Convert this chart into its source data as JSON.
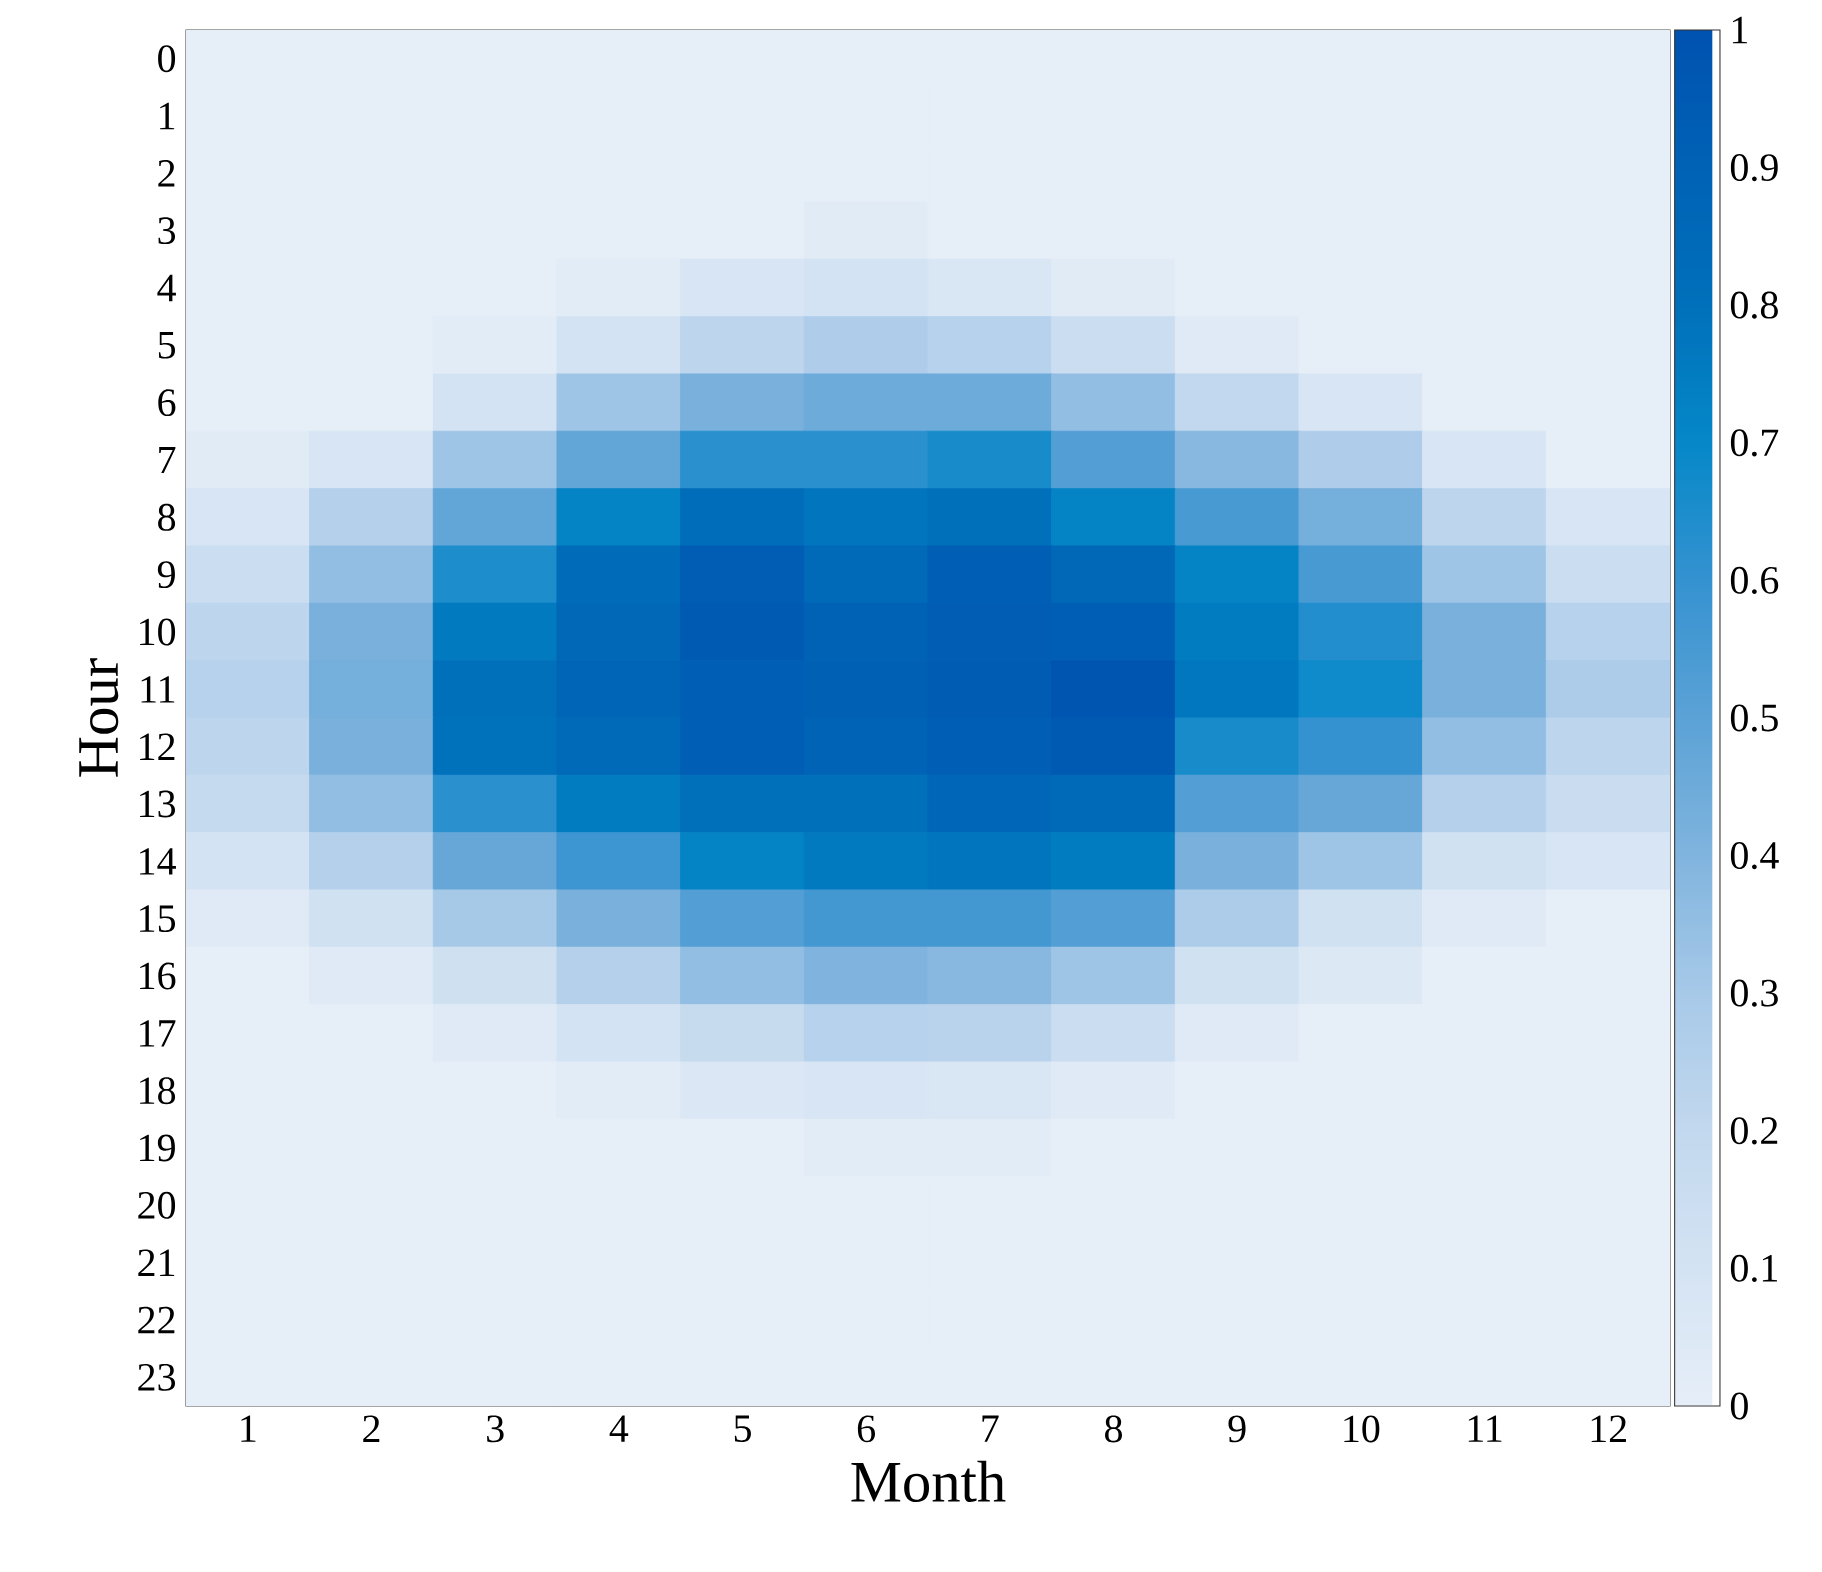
{
  "chart_data": {
    "type": "heatmap",
    "xlabel": "Month",
    "ylabel": "Hour",
    "categories": [
      "1",
      "2",
      "3",
      "4",
      "5",
      "6",
      "7",
      "8",
      "9",
      "10",
      "11",
      "12"
    ],
    "y_categories": [
      "0",
      "1",
      "2",
      "3",
      "4",
      "5",
      "6",
      "7",
      "8",
      "9",
      "10",
      "11",
      "12",
      "13",
      "14",
      "15",
      "16",
      "17",
      "18",
      "19",
      "20",
      "21",
      "22",
      "23"
    ],
    "cells": [
      [
        0,
        0,
        0,
        0,
        0,
        0,
        0,
        0,
        0,
        0,
        0,
        0
      ],
      [
        0,
        0,
        0,
        0,
        0,
        0,
        0,
        0,
        0,
        0,
        0,
        0
      ],
      [
        0,
        0,
        0,
        0,
        0,
        0,
        0,
        0,
        0,
        0,
        0,
        0
      ],
      [
        0,
        0,
        0,
        0,
        0,
        0.03,
        0,
        0,
        0,
        0,
        0,
        0
      ],
      [
        0,
        0,
        0,
        0.02,
        0.08,
        0.1,
        0.07,
        0.03,
        0,
        0,
        0,
        0
      ],
      [
        0,
        0,
        0.02,
        0.1,
        0.22,
        0.27,
        0.24,
        0.15,
        0.04,
        0,
        0,
        0
      ],
      [
        0,
        0,
        0.1,
        0.32,
        0.42,
        0.45,
        0.45,
        0.35,
        0.2,
        0.08,
        0,
        0
      ],
      [
        0.03,
        0.08,
        0.32,
        0.48,
        0.62,
        0.62,
        0.66,
        0.52,
        0.38,
        0.27,
        0.08,
        0
      ],
      [
        0.08,
        0.25,
        0.48,
        0.72,
        0.82,
        0.78,
        0.8,
        0.72,
        0.55,
        0.43,
        0.22,
        0.08
      ],
      [
        0.15,
        0.35,
        0.65,
        0.83,
        0.93,
        0.85,
        0.92,
        0.86,
        0.72,
        0.55,
        0.32,
        0.15
      ],
      [
        0.22,
        0.42,
        0.76,
        0.86,
        0.95,
        0.9,
        0.93,
        0.92,
        0.75,
        0.64,
        0.42,
        0.24
      ],
      [
        0.24,
        0.43,
        0.8,
        0.88,
        0.92,
        0.91,
        0.94,
        0.98,
        0.77,
        0.68,
        0.42,
        0.28
      ],
      [
        0.22,
        0.42,
        0.79,
        0.84,
        0.92,
        0.89,
        0.92,
        0.95,
        0.66,
        0.6,
        0.35,
        0.22
      ],
      [
        0.18,
        0.35,
        0.62,
        0.75,
        0.8,
        0.8,
        0.87,
        0.85,
        0.52,
        0.47,
        0.25,
        0.16
      ],
      [
        0.1,
        0.25,
        0.47,
        0.58,
        0.72,
        0.76,
        0.78,
        0.75,
        0.42,
        0.32,
        0.12,
        0.08
      ],
      [
        0.04,
        0.12,
        0.3,
        0.42,
        0.52,
        0.56,
        0.56,
        0.52,
        0.28,
        0.12,
        0.04,
        0
      ],
      [
        0,
        0.04,
        0.13,
        0.25,
        0.35,
        0.4,
        0.38,
        0.32,
        0.12,
        0.05,
        0,
        0
      ],
      [
        0,
        0,
        0.04,
        0.1,
        0.17,
        0.24,
        0.23,
        0.15,
        0.04,
        0,
        0,
        0
      ],
      [
        0,
        0,
        0,
        0.02,
        0.06,
        0.08,
        0.07,
        0.04,
        0,
        0,
        0,
        0
      ],
      [
        0,
        0,
        0,
        0,
        0,
        0.02,
        0.02,
        0,
        0,
        0,
        0,
        0
      ],
      [
        0,
        0,
        0,
        0,
        0,
        0,
        0,
        0,
        0,
        0,
        0,
        0
      ],
      [
        0,
        0,
        0,
        0,
        0,
        0,
        0,
        0,
        0,
        0,
        0,
        0
      ],
      [
        0,
        0,
        0,
        0,
        0,
        0,
        0,
        0,
        0,
        0,
        0,
        0
      ],
      [
        0,
        0,
        0,
        0,
        0,
        0,
        0,
        0,
        0,
        0,
        0,
        0
      ]
    ],
    "clim": [
      0,
      1
    ],
    "cticks": [
      0,
      0.1,
      0.2,
      0.3,
      0.4,
      0.5,
      0.6,
      0.7,
      0.8,
      0.9,
      1
    ]
  }
}
